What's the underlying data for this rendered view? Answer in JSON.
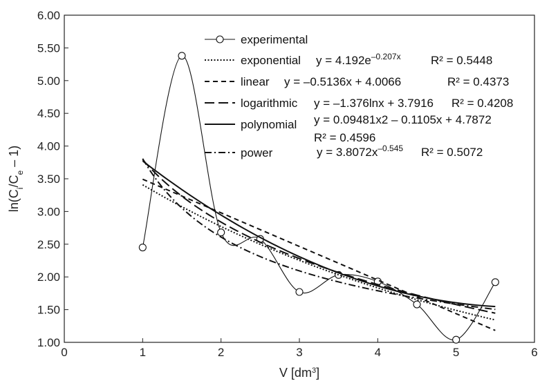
{
  "chart_data": {
    "type": "line",
    "xlabel": "V [dm3]",
    "ylabel": "ln(Ci/Ce – 1)",
    "xlim": [
      0,
      6
    ],
    "ylim": [
      1.0,
      6.0
    ],
    "x_ticks": [
      "0",
      "1",
      "2",
      "3",
      "4",
      "5",
      "6"
    ],
    "y_ticks": [
      "1.00",
      "1.50",
      "2.00",
      "2.50",
      "3.00",
      "3.50",
      "4.00",
      "4.50",
      "5.00",
      "5.50",
      "6.00"
    ],
    "grid": false,
    "legend_position": "top-center",
    "series": [
      {
        "name": "experimental",
        "style": "solid-markers",
        "x": [
          1.0,
          1.5,
          2.0,
          2.5,
          3.0,
          3.5,
          4.0,
          4.5,
          5.0,
          5.5
        ],
        "y": [
          2.45,
          5.38,
          2.68,
          2.58,
          1.77,
          2.03,
          1.93,
          1.58,
          1.04,
          1.92
        ]
      },
      {
        "name": "exponential",
        "style": "dotted",
        "equation": "y = 4.192e",
        "exponent": "–0.207x",
        "r2": "R² = 0.5448"
      },
      {
        "name": "linear",
        "style": "dashed",
        "equation": "y = –0.5136x + 4.0066",
        "r2": "R² = 0.4373"
      },
      {
        "name": "logarithmic",
        "style": "long-dashed",
        "equation": "y = –1.376lnx + 3.7916",
        "r2": "R² = 0.4208"
      },
      {
        "name": "polynomial",
        "style": "solid",
        "equation": "y = 0.09481x2 – 0.1105x + 4.7872",
        "r2": "R² = 0.4596"
      },
      {
        "name": "power",
        "style": "dash-dot",
        "equation": "y = 3.8072x",
        "exponent": "–0.545",
        "r2": "R² = 0.5072"
      }
    ]
  }
}
